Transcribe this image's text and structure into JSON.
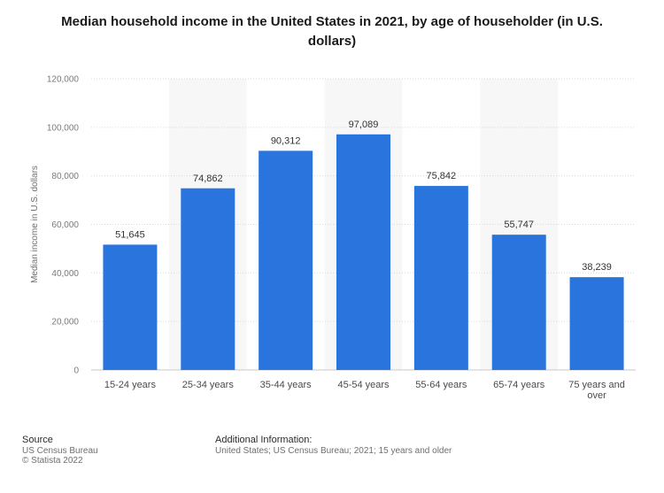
{
  "chart_data": {
    "type": "bar",
    "title_lines": [
      "Median household income in the United States in 2021, by age of householder (in U.S.",
      "dollars)"
    ],
    "ylabel": "Median income in U.S. dollars",
    "xlabel": "",
    "ylim": [
      0,
      120000
    ],
    "yticks": [
      0,
      20000,
      40000,
      60000,
      80000,
      100000,
      120000
    ],
    "ytick_labels": [
      "0",
      "20,000",
      "40,000",
      "60,000",
      "80,000",
      "100,000",
      "120,000"
    ],
    "categories": [
      [
        "15-24 years"
      ],
      [
        "25-34 years"
      ],
      [
        "35-44 years"
      ],
      [
        "45-54 years"
      ],
      [
        "55-64 years"
      ],
      [
        "65-74 years"
      ],
      [
        "75 years and",
        "over"
      ]
    ],
    "values": [
      51645,
      74862,
      90312,
      97089,
      75842,
      55747,
      38239
    ],
    "value_labels": [
      "51,645",
      "74,862",
      "90,312",
      "97,089",
      "75,842",
      "55,747",
      "38,239"
    ],
    "bar_color": "#2a74dd",
    "grid": true,
    "legend": "none"
  },
  "footer": {
    "source_heading": "Source",
    "source_line1": "US Census Bureau",
    "source_line2": "© Statista 2022",
    "info_heading": "Additional Information:",
    "info_line1": "United States; US Census Bureau; 2021; 15 years and older"
  }
}
